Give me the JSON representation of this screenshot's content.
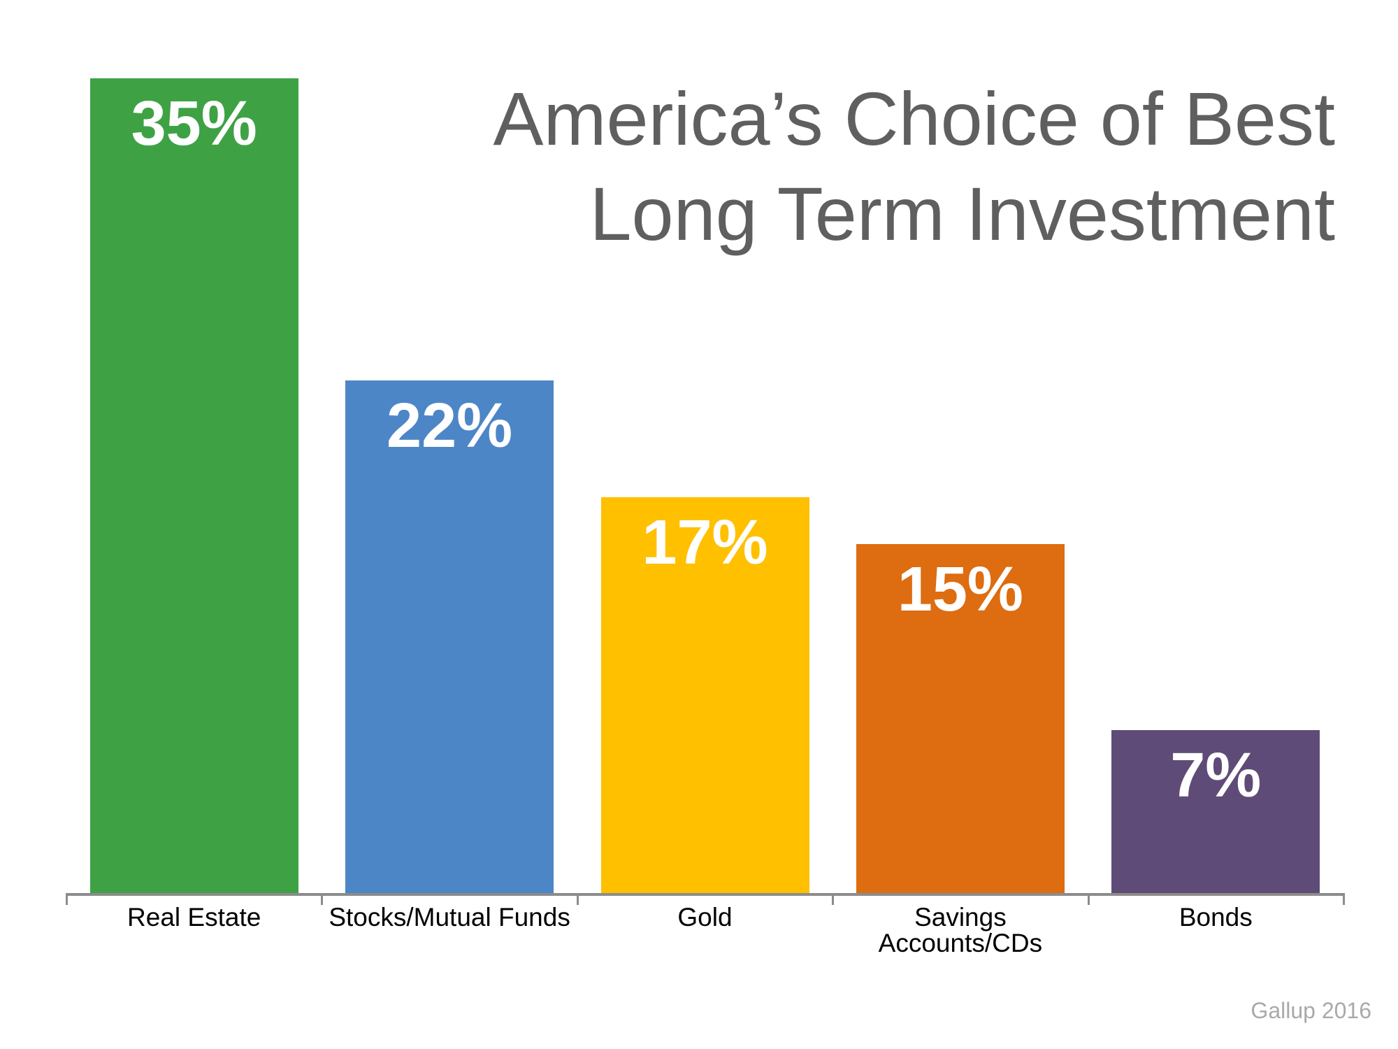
{
  "title": {
    "line1": "America’s Choice of Best",
    "line2": "Long Term Investment"
  },
  "source": "Gallup 2016",
  "chart_data": {
    "type": "bar",
    "title": "America’s Choice of Best Long Term Investment",
    "categories": [
      "Real Estate",
      "Stocks/Mutual Funds",
      "Gold",
      "Savings Accounts/CDs",
      "Bonds"
    ],
    "values": [
      35,
      22,
      17,
      15,
      7
    ],
    "value_labels": [
      "35%",
      "22%",
      "17%",
      "15%",
      "7%"
    ],
    "bar_colors": [
      "#3ea245",
      "#4d86c6",
      "#ffc000",
      "#de6c10",
      "#5f4b77"
    ],
    "value_label_color": "#ffffff",
    "title_color": "#5f5f5f",
    "axis_color": "#8c8c8c",
    "category_label_color": "#000000",
    "source_color": "#a9a9a9",
    "xlabel": "",
    "ylabel": "",
    "ylim": [
      0,
      35
    ],
    "grid": false,
    "legend": false,
    "source": "Gallup 2016"
  }
}
